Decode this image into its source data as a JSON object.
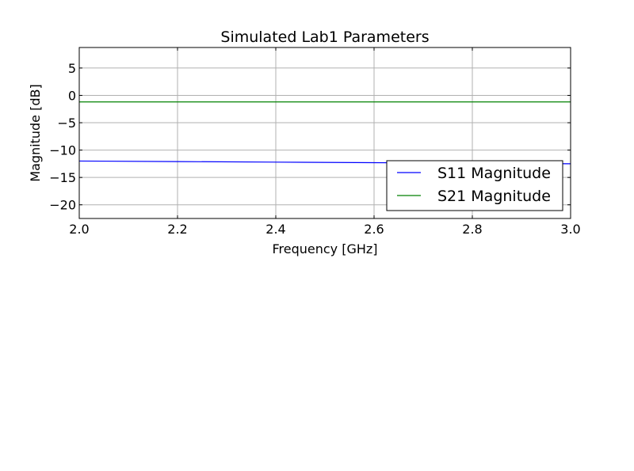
{
  "chart_data": {
    "type": "line",
    "title": "Simulated Lab1 Parameters",
    "xlabel": "Frequency [GHz]",
    "ylabel": "Magnitude [dB]",
    "xlim": [
      2.0,
      3.0
    ],
    "ylim": [
      -22.5,
      8.75
    ],
    "x_ticks": [
      2.0,
      2.2,
      2.4,
      2.6,
      2.8,
      3.0
    ],
    "x_tick_labels": [
      "2.0",
      "2.2",
      "2.4",
      "2.6",
      "2.8",
      "3.0"
    ],
    "y_ticks": [
      5,
      0,
      -5,
      -10,
      -15,
      -20
    ],
    "y_tick_labels": [
      "5",
      "0",
      "−5",
      "−10",
      "−15",
      "−20"
    ],
    "grid": true,
    "legend_position": "lower-right",
    "series": [
      {
        "name": "S11 Magnitude",
        "color": "#0000ff",
        "x": [
          2.0,
          2.2,
          2.4,
          2.6,
          2.8,
          3.0
        ],
        "values": [
          -12.0,
          -12.1,
          -12.2,
          -12.3,
          -12.4,
          -12.5
        ]
      },
      {
        "name": "S21 Magnitude",
        "color": "#008000",
        "x": [
          2.0,
          2.2,
          2.4,
          2.6,
          2.8,
          3.0
        ],
        "values": [
          -1.2,
          -1.2,
          -1.2,
          -1.2,
          -1.2,
          -1.2
        ]
      }
    ]
  }
}
